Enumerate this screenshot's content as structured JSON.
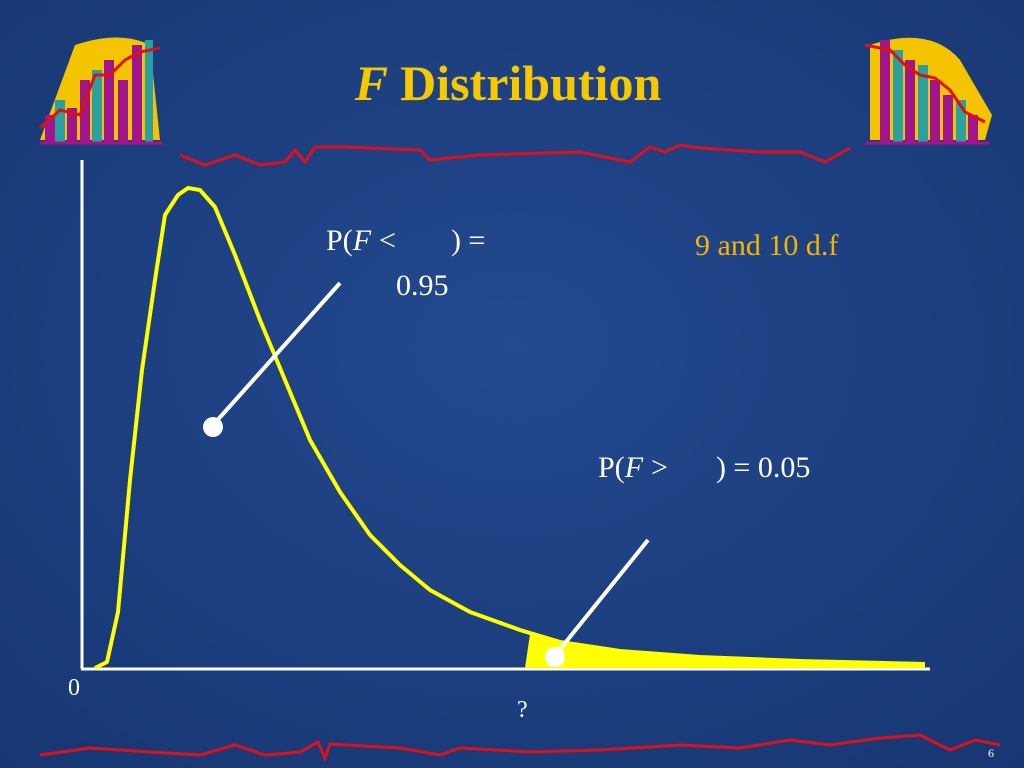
{
  "title": {
    "italic": "F",
    "text": "Distribution"
  },
  "labels": {
    "lower": {
      "prefix": "P(",
      "variable": "F",
      "operator": "<",
      "suffix": ") =",
      "value": "0.95"
    },
    "df": "9 and 10 d.f",
    "upper": {
      "prefix": "P(",
      "variable": "F",
      "operator": ">",
      "suffix": ") = 0.05"
    }
  },
  "axis": {
    "origin": "0",
    "critical": "?"
  },
  "page_number": "6"
}
